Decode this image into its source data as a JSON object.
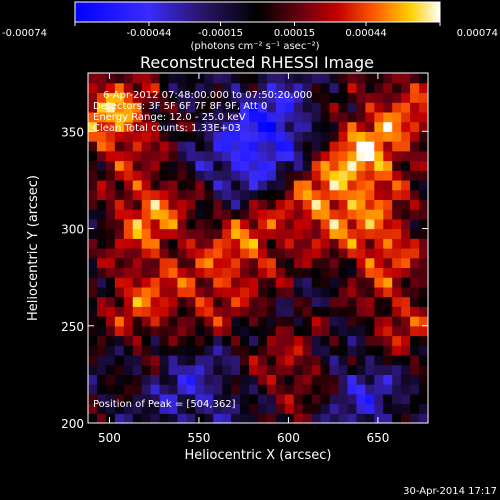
{
  "chart_data": {
    "type": "heatmap",
    "title": "Reconstructed RHESSI Image",
    "xlabel": "Heliocentric X (arcsec)",
    "ylabel": "Heliocentric Y (arcsec)",
    "xlim": [
      488,
      678
    ],
    "ylim": [
      200,
      380
    ],
    "x_ticks": [
      500,
      550,
      600,
      650
    ],
    "y_ticks": [
      200,
      250,
      300,
      350
    ],
    "colorbar": {
      "range": [
        -0.00074,
        0.00074
      ],
      "tick_values": [
        -0.00074,
        -0.00044,
        -0.00015,
        0.00015,
        0.00044,
        0.00074
      ],
      "tick_labels": [
        "-0.00074",
        "-0.00044",
        "-0.00015",
        "0.00015",
        "0.00044",
        "0.00074"
      ],
      "unit_label": "(photons cm⁻² s⁻¹ asec⁻²)"
    },
    "annotations": {
      "time_range": "6-Apr-2012 07:48:00.000 to 07:50:20.000",
      "detectors": "Detectors: 3F 5F 6F 7F 8F 9F, Att 0",
      "energy_range": "Energy Range: 12.0 - 25.0 keV",
      "method_counts": "Clean     Total counts: 1.33E+03",
      "peak": "Position of Peak = [504,362]"
    },
    "peak_position": [
      504,
      362
    ],
    "bright_regions": [
      {
        "x": 500,
        "y": 355,
        "level": 1.0
      },
      {
        "x": 640,
        "y": 335,
        "level": 0.95
      },
      {
        "x": 520,
        "y": 305,
        "level": 0.85
      },
      {
        "x": 575,
        "y": 292,
        "level": 0.7
      },
      {
        "x": 615,
        "y": 310,
        "level": 0.8
      },
      {
        "x": 650,
        "y": 290,
        "level": 0.75
      },
      {
        "x": 515,
        "y": 260,
        "level": 0.65
      },
      {
        "x": 555,
        "y": 265,
        "level": 0.55
      },
      {
        "x": 665,
        "y": 360,
        "level": 0.6
      },
      {
        "x": 600,
        "y": 225,
        "level": 0.5
      },
      {
        "x": 660,
        "y": 248,
        "level": 0.55
      }
    ],
    "dark_regions": [
      {
        "x": 590,
        "y": 350,
        "level": -0.7
      },
      {
        "x": 570,
        "y": 330,
        "level": -0.55
      },
      {
        "x": 545,
        "y": 215,
        "level": -0.45
      },
      {
        "x": 640,
        "y": 215,
        "level": -0.5
      }
    ]
  },
  "footer": {
    "date": "30-Apr-2014 17:17"
  }
}
